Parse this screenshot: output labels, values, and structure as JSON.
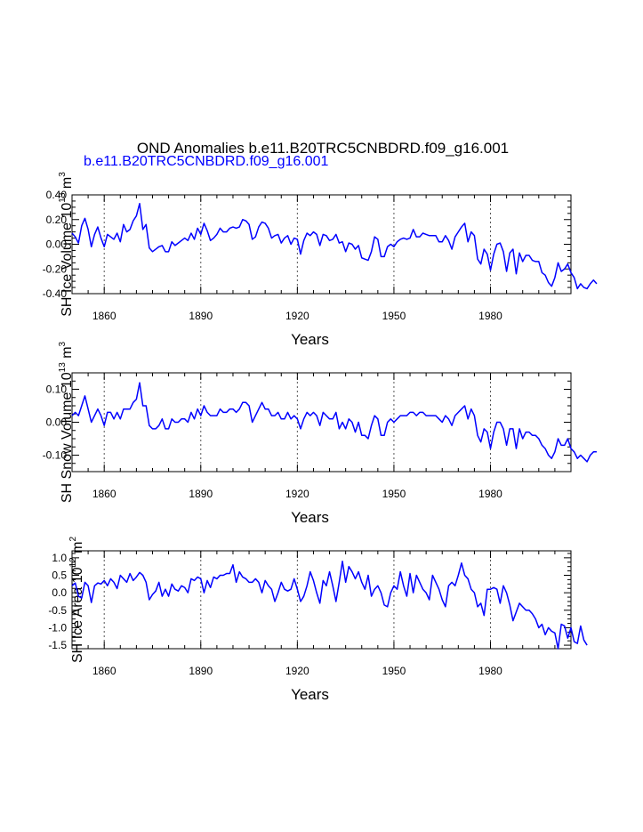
{
  "page": {
    "title": "OND Anomalies b.e11.B20TRC5CNBDRD.f09_g16.001",
    "subtitle": "b.e11.B20TRC5CNBDRD.f09_g16.001",
    "subtitle_color": "#0000ff"
  },
  "chart_data": [
    {
      "type": "line",
      "ylabel": "SH Ice Volume 10^13 m^3",
      "ylabel_main": "SH Ice Volume 10",
      "ylabel_exp": "13",
      "ylabel_unit": " m",
      "ylabel_unit_exp": "3",
      "xlabel": "Years",
      "xlim": [
        1850,
        2005
      ],
      "ylim": [
        -0.4,
        0.4
      ],
      "yticks": [
        0.4,
        0.2,
        0.0,
        -0.2,
        -0.4
      ],
      "ytick_labels": [
        "0.40",
        "0.20",
        "0.00",
        "-0.20",
        "-0.40"
      ],
      "xticks": [
        1860,
        1890,
        1920,
        1950,
        1980
      ],
      "xtick_labels": [
        "1860",
        "1890",
        "1920",
        "1950",
        "1980"
      ],
      "gridlines_x": [
        1860,
        1890,
        1920,
        1950,
        1980
      ],
      "line_color": "#0000ff",
      "series": [
        {
          "name": "SH Ice Volume",
          "x_start": 1850,
          "values": [
            0.09,
            0.06,
            0.01,
            0.15,
            0.21,
            0.12,
            -0.02,
            0.08,
            0.14,
            0.05,
            -0.02,
            0.08,
            0.06,
            0.04,
            0.09,
            0.02,
            0.16,
            0.1,
            0.12,
            0.19,
            0.23,
            0.33,
            0.12,
            0.16,
            -0.03,
            -0.06,
            -0.04,
            -0.02,
            -0.01,
            -0.06,
            -0.06,
            0.02,
            -0.01,
            0.01,
            0.03,
            0.05,
            0.03,
            0.09,
            0.04,
            0.13,
            0.08,
            0.17,
            0.11,
            0.03,
            0.05,
            0.08,
            0.13,
            0.1,
            0.1,
            0.13,
            0.14,
            0.13,
            0.14,
            0.2,
            0.19,
            0.16,
            0.04,
            0.06,
            0.14,
            0.18,
            0.17,
            0.13,
            0.05,
            0.07,
            0.08,
            0.01,
            0.05,
            0.07,
            0.0,
            0.05,
            0.04,
            -0.08,
            0.03,
            0.09,
            0.07,
            0.1,
            0.08,
            -0.01,
            0.08,
            0.07,
            0.03,
            0.04,
            0.08,
            0.01,
            0.02,
            -0.06,
            0.01,
            0.0,
            -0.04,
            -0.01,
            -0.11,
            -0.12,
            -0.13,
            -0.06,
            0.06,
            0.04,
            -0.1,
            -0.1,
            -0.02,
            0.0,
            -0.02,
            0.02,
            0.04,
            0.05,
            0.04,
            0.05,
            0.12,
            0.06,
            0.06,
            0.09,
            0.08,
            0.07,
            0.07,
            0.07,
            0.02,
            0.02,
            0.07,
            0.03,
            -0.04,
            0.06,
            0.1,
            0.14,
            0.17,
            0.02,
            0.1,
            0.07,
            -0.12,
            -0.16,
            -0.04,
            -0.08,
            -0.21,
            -0.08,
            0.0,
            0.01,
            -0.06,
            -0.22,
            -0.07,
            -0.04,
            -0.24,
            -0.07,
            -0.14,
            -0.09,
            -0.09,
            -0.13,
            -0.14,
            -0.14,
            -0.23,
            -0.25,
            -0.31,
            -0.34,
            -0.27,
            -0.15,
            -0.22,
            -0.2,
            -0.16,
            -0.23,
            -0.27,
            -0.36,
            -0.32,
            -0.35,
            -0.36,
            -0.32,
            -0.29,
            -0.32
          ]
        }
      ]
    },
    {
      "type": "line",
      "ylabel": "SH Snow Volume 10^13 m^3",
      "ylabel_main": "SH Snow Volume 10",
      "ylabel_exp": "13",
      "ylabel_unit": " m",
      "ylabel_unit_exp": "3",
      "xlabel": "Years",
      "xlim": [
        1850,
        2005
      ],
      "ylim": [
        -0.15,
        0.15
      ],
      "yticks": [
        0.1,
        0.0,
        -0.1
      ],
      "ytick_labels": [
        "0.10",
        "0.00",
        "-0.10"
      ],
      "xticks": [
        1860,
        1890,
        1920,
        1950,
        1980
      ],
      "xtick_labels": [
        "1860",
        "1890",
        "1920",
        "1950",
        "1980"
      ],
      "gridlines_x": [
        1860,
        1890,
        1920,
        1950,
        1980
      ],
      "line_color": "#0000ff",
      "series": [
        {
          "name": "SH Snow Volume",
          "x_start": 1850,
          "values": [
            0.02,
            0.03,
            0.02,
            0.05,
            0.08,
            0.04,
            0.0,
            0.02,
            0.04,
            0.02,
            -0.01,
            0.03,
            0.03,
            0.01,
            0.03,
            0.01,
            0.04,
            0.04,
            0.04,
            0.06,
            0.07,
            0.12,
            0.05,
            0.05,
            -0.01,
            -0.02,
            -0.02,
            -0.01,
            0.01,
            -0.02,
            -0.02,
            0.01,
            0.0,
            0.0,
            0.01,
            0.01,
            0.0,
            0.03,
            0.01,
            0.04,
            0.02,
            0.05,
            0.03,
            0.02,
            0.02,
            0.02,
            0.04,
            0.03,
            0.03,
            0.04,
            0.04,
            0.03,
            0.04,
            0.06,
            0.06,
            0.05,
            0.0,
            0.02,
            0.04,
            0.06,
            0.04,
            0.04,
            0.02,
            0.02,
            0.03,
            0.01,
            0.01,
            0.03,
            0.01,
            0.02,
            0.01,
            -0.02,
            0.01,
            0.03,
            0.02,
            0.03,
            0.02,
            -0.01,
            0.03,
            0.02,
            0.01,
            0.01,
            0.03,
            -0.02,
            0.0,
            -0.02,
            0.01,
            0.0,
            -0.03,
            0.0,
            -0.04,
            -0.04,
            -0.05,
            -0.01,
            0.02,
            0.01,
            -0.04,
            -0.04,
            0.0,
            0.01,
            0.0,
            0.01,
            0.02,
            0.02,
            0.02,
            0.03,
            0.03,
            0.02,
            0.03,
            0.03,
            0.02,
            0.02,
            0.02,
            0.02,
            0.01,
            0.0,
            0.02,
            0.01,
            -0.01,
            0.02,
            0.03,
            0.04,
            0.05,
            0.01,
            0.04,
            0.02,
            -0.04,
            -0.06,
            -0.02,
            -0.03,
            -0.08,
            -0.03,
            0.0,
            0.0,
            -0.02,
            -0.07,
            -0.02,
            -0.02,
            -0.08,
            -0.02,
            -0.05,
            -0.03,
            -0.03,
            -0.04,
            -0.04,
            -0.05,
            -0.07,
            -0.08,
            -0.1,
            -0.11,
            -0.09,
            -0.05,
            -0.07,
            -0.07,
            -0.05,
            -0.08,
            -0.09,
            -0.11,
            -0.1,
            -0.11,
            -0.12,
            -0.1,
            -0.09,
            -0.09
          ]
        }
      ]
    },
    {
      "type": "line",
      "ylabel": "SH Ice Area 10^12 m^2",
      "ylabel_main": "SH Ice Area 10",
      "ylabel_exp": "12",
      "ylabel_unit": " m",
      "ylabel_unit_exp": "2",
      "xlabel": "Years",
      "xlim": [
        1850,
        2005
      ],
      "ylim": [
        -1.6,
        1.2
      ],
      "yticks": [
        1.0,
        0.5,
        0.0,
        -0.5,
        -1.0,
        -1.5
      ],
      "ytick_labels": [
        "1.0",
        "0.5",
        "0.0",
        "-0.5",
        "-1.0",
        "-1.5"
      ],
      "xticks": [
        1860,
        1890,
        1920,
        1950,
        1980
      ],
      "xtick_labels": [
        "1860",
        "1890",
        "1920",
        "1950",
        "1980"
      ],
      "gridlines_x": [
        1860,
        1890,
        1920,
        1950,
        1980
      ],
      "line_color": "#0000ff",
      "series": [
        {
          "name": "SH Ice Area",
          "x_start": 1850,
          "values": [
            0.2,
            0.28,
            -0.1,
            -0.15,
            0.3,
            0.2,
            -0.28,
            0.2,
            0.28,
            0.25,
            0.35,
            0.2,
            0.4,
            0.3,
            0.12,
            0.5,
            0.4,
            0.3,
            0.55,
            0.35,
            0.45,
            0.58,
            0.5,
            0.3,
            -0.2,
            -0.05,
            0.05,
            0.3,
            -0.1,
            0.1,
            -0.1,
            0.25,
            0.1,
            0.05,
            0.2,
            0.15,
            0.0,
            0.4,
            0.35,
            0.45,
            0.4,
            0.0,
            0.35,
            0.15,
            0.45,
            0.4,
            0.5,
            0.5,
            0.55,
            0.55,
            0.8,
            0.3,
            0.6,
            0.45,
            0.4,
            0.3,
            0.3,
            0.4,
            0.3,
            0.0,
            0.35,
            0.2,
            0.1,
            -0.25,
            0.0,
            0.3,
            0.1,
            0.05,
            0.1,
            0.4,
            0.1,
            -0.25,
            -0.1,
            0.2,
            0.6,
            0.35,
            0.0,
            -0.3,
            0.35,
            0.2,
            0.6,
            0.2,
            -0.25,
            0.3,
            0.9,
            0.3,
            0.75,
            0.6,
            0.4,
            0.6,
            0.3,
            0.1,
            0.5,
            -0.1,
            0.1,
            0.2,
            0.0,
            -0.35,
            -0.4,
            0.0,
            0.2,
            0.1,
            0.6,
            0.2,
            -0.1,
            0.55,
            0.0,
            0.5,
            0.3,
            0.1,
            0.0,
            -0.2,
            0.5,
            0.3,
            0.1,
            -0.2,
            -0.4,
            0.2,
            0.3,
            0.2,
            0.5,
            0.85,
            0.5,
            0.4,
            0.1,
            0.0,
            -0.4,
            -0.3,
            -0.65,
            0.1,
            0.1,
            0.15,
            0.1,
            -0.3,
            0.2,
            0.0,
            -0.35,
            -0.8,
            -0.55,
            -0.3,
            -0.4,
            -0.5,
            -0.5,
            -0.6,
            -0.75,
            -1.0,
            -0.9,
            -1.2,
            -1.0,
            -1.1,
            -1.15,
            -1.6,
            -0.9,
            -0.95,
            -1.3,
            -1.0,
            -1.4,
            -1.45,
            -0.95,
            -1.35,
            -1.5
          ]
        }
      ]
    }
  ]
}
